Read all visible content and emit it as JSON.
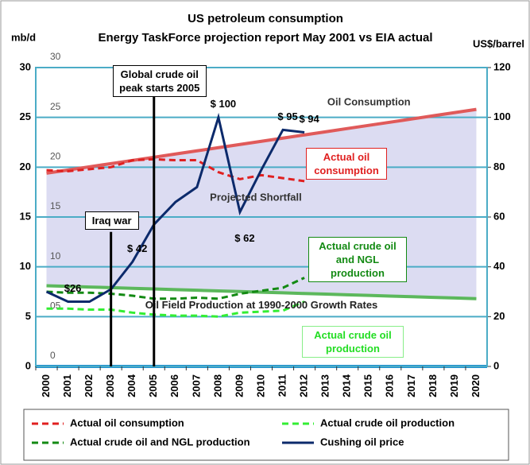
{
  "chart_data": {
    "type": "line",
    "title": [
      "US petroleum consumption",
      "Energy TaskForce projection report May 2001 vs EIA actual"
    ],
    "y_label": "mb/d",
    "y2_label": "US$/barrel",
    "categories": [
      "2000",
      "2001",
      "2002",
      "2003",
      "2004",
      "2005",
      "2006",
      "2007",
      "2008",
      "2009",
      "2010",
      "2011",
      "2012",
      "2013",
      "2014",
      "2015",
      "2016",
      "2017",
      "2018",
      "2019",
      "2020"
    ],
    "ylim": [
      0,
      30
    ],
    "yticks": [
      0,
      5,
      10,
      15,
      20,
      25,
      30
    ],
    "y2lim": [
      0,
      120
    ],
    "y2ticks": [
      0,
      20,
      40,
      60,
      80,
      100,
      120
    ],
    "inner_labels": [
      "0",
      "05",
      "10",
      "15",
      "20",
      "25",
      "30"
    ],
    "grid": true,
    "series": [
      {
        "name": "Oil Consumption",
        "color": "#e05a5a",
        "style": "solid",
        "width": 4,
        "in_legend": false,
        "values": [
          19.4,
          19.72,
          20.04,
          20.36,
          20.68,
          21.0,
          21.32,
          21.64,
          21.96,
          22.28,
          22.6,
          22.92,
          23.24,
          23.56,
          23.88,
          24.2,
          24.52,
          24.84,
          25.16,
          25.48,
          25.8
        ]
      },
      {
        "name": "Oil Field Production at 1990-2000 Growth Rates",
        "color": "#5cb85c",
        "style": "solid",
        "width": 4,
        "in_legend": false,
        "values": [
          8.1,
          8.04,
          7.97,
          7.91,
          7.84,
          7.78,
          7.71,
          7.65,
          7.58,
          7.52,
          7.45,
          7.39,
          7.32,
          7.26,
          7.19,
          7.13,
          7.06,
          7.0,
          6.93,
          6.87,
          6.8
        ]
      },
      {
        "name": "Actual oil consumption",
        "color": "#e02020",
        "style": "dashed",
        "width": 3,
        "in_legend": true,
        "label_color": "#e02020",
        "values": [
          19.7,
          19.6,
          19.8,
          20.0,
          20.7,
          20.8,
          20.7,
          20.7,
          19.5,
          18.8,
          19.2,
          18.9,
          18.6,
          null,
          null,
          null,
          null,
          null,
          null,
          null,
          null
        ]
      },
      {
        "name": "Actual crude oil production",
        "color": "#33ee33",
        "style": "dashed",
        "width": 3,
        "in_legend": true,
        "label_color": "#22dd22",
        "values": [
          5.8,
          5.8,
          5.7,
          5.7,
          5.4,
          5.2,
          5.1,
          5.1,
          5.0,
          5.4,
          5.5,
          5.6,
          6.5,
          null,
          null,
          null,
          null,
          null,
          null,
          null,
          null
        ]
      },
      {
        "name": "Actual crude oil and NGL production",
        "color": "#138a13",
        "style": "dashed",
        "width": 3,
        "in_legend": true,
        "label_color": "#138a13",
        "values": [
          7.5,
          7.4,
          7.4,
          7.3,
          7.1,
          6.8,
          6.8,
          6.9,
          6.8,
          7.3,
          7.6,
          7.9,
          8.9,
          null,
          null,
          null,
          null,
          null,
          null,
          null,
          null
        ]
      },
      {
        "name": "Cushing oil price",
        "color": "#0c2a6b",
        "style": "solid",
        "width": 3,
        "in_legend": true,
        "axis": "y2",
        "values": [
          30,
          26,
          26,
          31,
          42,
          57,
          66,
          72,
          100,
          62,
          79,
          95,
          94,
          null,
          null,
          null,
          null,
          null,
          null,
          null,
          null
        ],
        "value_labels": [
          null,
          "$26",
          null,
          null,
          "$ 42",
          null,
          null,
          null,
          "$ 100",
          "$ 62",
          null,
          "$ 95",
          "$ 94",
          null,
          null,
          null,
          null,
          null,
          null,
          null,
          null
        ]
      }
    ],
    "annotations": [
      {
        "text": "Projected Shortfall",
        "x": "2009",
        "y": 16.9
      },
      {
        "text": "Iraq war",
        "x": "2003"
      },
      {
        "text": "Global crude oil peak starts 2005",
        "x": "2005"
      }
    ]
  }
}
